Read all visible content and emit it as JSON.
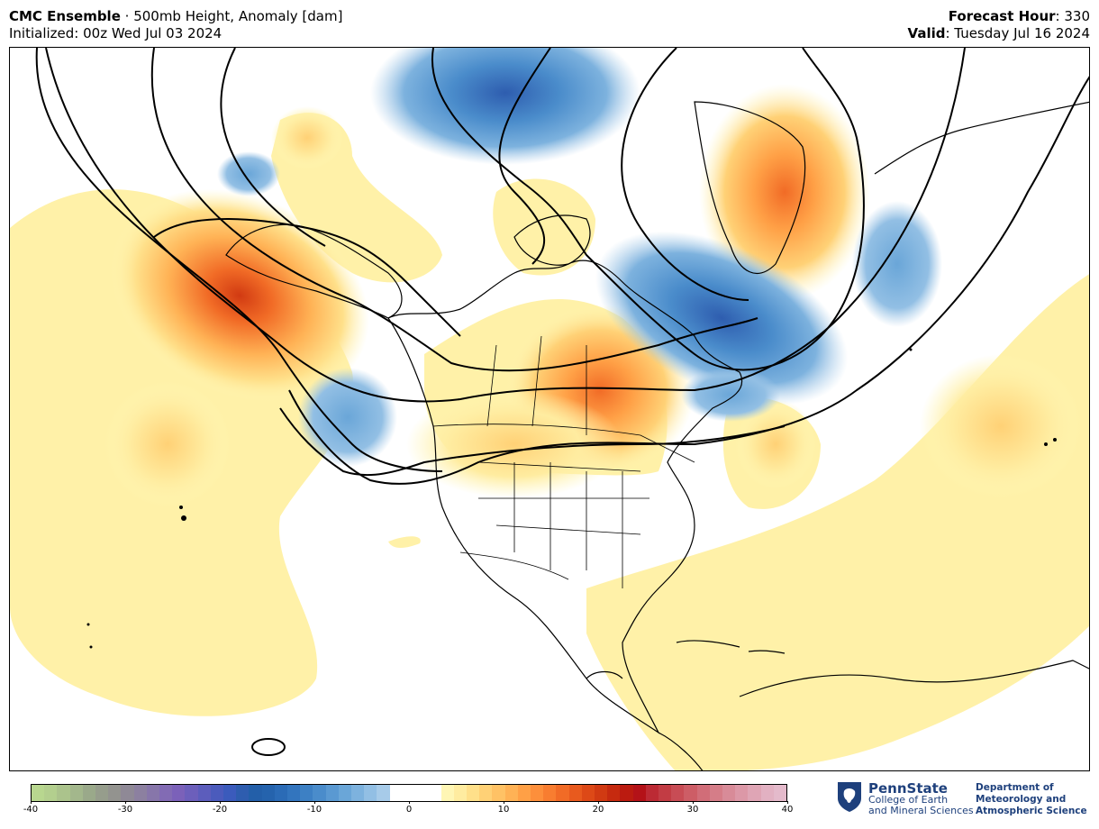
{
  "header": {
    "model": "CMC Ensemble",
    "separator": " · ",
    "field": "500mb Height, Anomaly [dam]",
    "initialized": "Initialized: 00z Wed Jul 03 2024",
    "forecast_hour_label": "Forecast Hour",
    "forecast_hour_value": ": 330",
    "valid_label": "Valid",
    "valid_value": ": Tuesday Jul 16 2024"
  },
  "colorbar": {
    "min": -40,
    "max": 40,
    "ticks": [
      "-40",
      "-30",
      "-20",
      "-10",
      "0",
      "10",
      "20",
      "30",
      "40"
    ],
    "colors": [
      "#b8d78f",
      "#b3cf8e",
      "#abc38c",
      "#a3b78c",
      "#9aa98a",
      "#969d8c",
      "#93938f",
      "#8f8996",
      "#8c80a0",
      "#8776aa",
      "#826bb4",
      "#7b61b9",
      "#6c5fbb",
      "#5c5dbc",
      "#4b5bbc",
      "#3b5bbc",
      "#2e5daf",
      "#235fa9",
      "#2563ad",
      "#2b6bb6",
      "#3375be",
      "#3d80c4",
      "#4a8ccb",
      "#5a99d2",
      "#6aa6d8",
      "#7db2de",
      "#92bfe4",
      "#a7cbe9",
      "#ffffff",
      "#ffffff",
      "#ffffff",
      "#ffffff",
      "#fff6b5",
      "#ffeca0",
      "#ffe08a",
      "#ffd176",
      "#ffc265",
      "#ffb255",
      "#ffa046",
      "#fd8f3b",
      "#f87d30",
      "#f16b26",
      "#e85a1e",
      "#dd4917",
      "#d13a12",
      "#c62a0f",
      "#bb1b10",
      "#b41218",
      "#bc2a34",
      "#c23c44",
      "#c84c55",
      "#cd5d66",
      "#d16d78",
      "#d57d88",
      "#d88b98",
      "#dc98a7",
      "#dfa5b5",
      "#e2b1c2",
      "#e4bacb"
    ]
  },
  "logo": {
    "name": "PennState",
    "line1": "College of Earth",
    "line2": "and Mineral Sciences",
    "dept_line1": "Department of",
    "dept_line2": "Meteorology and",
    "dept_line3": "Atmospheric Science"
  }
}
